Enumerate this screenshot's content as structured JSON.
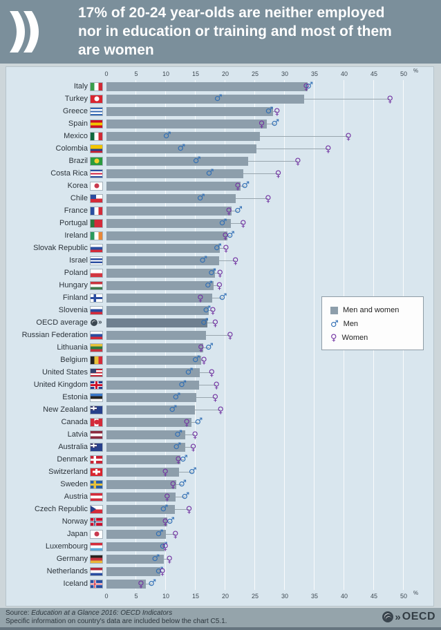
{
  "header": {
    "title_lines": [
      "17% of 20-24 year-olds are neither employed",
      "nor in education or training and most of them",
      "are women"
    ]
  },
  "axis": {
    "ticks": [
      0,
      5,
      10,
      15,
      20,
      25,
      30,
      35,
      40,
      45,
      50
    ],
    "unit": "%"
  },
  "legend": {
    "items": [
      {
        "icon": "bar-swatch-icon",
        "label": "Men and women"
      },
      {
        "icon": "male-icon",
        "label": "Men"
      },
      {
        "icon": "female-icon",
        "label": "Women"
      }
    ]
  },
  "chart_data": {
    "type": "bar",
    "orientation": "horizontal",
    "title": "17% of 20-24 year-olds are neither employed nor in education or training and most of them are women",
    "xlabel": "%",
    "xlim": [
      0,
      50
    ],
    "grid": "vertical, every 5",
    "legend_position": "middle-right",
    "series_names": [
      "Men and women",
      "Men",
      "Women"
    ],
    "marker_glyphs": {
      "men": "♂",
      "women": "♀"
    },
    "rows": [
      {
        "country": "Italy",
        "total": 33.8,
        "men": 34.1,
        "women": 33.6,
        "flag": {
          "d": "v",
          "c": [
            "#3a9e4b",
            "#ffffff",
            "#cf2b36"
          ]
        }
      },
      {
        "country": "Turkey",
        "total": 33.3,
        "men": 18.8,
        "women": 47.7,
        "flag": {
          "c": [
            "#d9252f"
          ],
          "o": [
            {
              "t": "dot",
              "c": "#ffffff"
            }
          ]
        }
      },
      {
        "country": "Greece",
        "total": 28.0,
        "men": 27.4,
        "women": 28.7,
        "flag": {
          "d": "h",
          "c": [
            "#3468b2",
            "#ffffff",
            "#3468b2",
            "#ffffff",
            "#3468b2"
          ]
        }
      },
      {
        "country": "Spain",
        "total": 27.0,
        "men": 28.4,
        "women": 26.1,
        "flag": {
          "d": "h",
          "c": [
            "#cc1126",
            "#f2c500",
            "#cc1126"
          ]
        }
      },
      {
        "country": "Mexico",
        "total": 25.8,
        "men": 10.2,
        "women": 40.7,
        "flag": {
          "d": "v",
          "c": [
            "#10693e",
            "#ffffff",
            "#cf2b36"
          ]
        }
      },
      {
        "country": "Colombia",
        "total": 25.2,
        "men": 12.6,
        "women": 37.3,
        "flag": {
          "d": "h",
          "c": [
            "#f2c500",
            "#f2c500",
            "#27408b",
            "#cf2030"
          ]
        }
      },
      {
        "country": "Brazil",
        "total": 23.8,
        "men": 15.2,
        "women": 32.2,
        "flag": {
          "c": [
            "#2b9a3e"
          ],
          "o": [
            {
              "t": "dot",
              "c": "#f2d02e"
            }
          ]
        }
      },
      {
        "country": "Costa Rica",
        "total": 23.0,
        "men": 17.4,
        "women": 28.9,
        "flag": {
          "d": "h",
          "c": [
            "#2a4da0",
            "#ffffff",
            "#d01f3c",
            "#ffffff",
            "#2a4da0"
          ]
        }
      },
      {
        "country": "Korea",
        "total": 22.6,
        "men": 23.4,
        "women": 22.1,
        "flag": {
          "c": [
            "#ffffff"
          ],
          "o": [
            {
              "t": "dot",
              "c": "#c93a4e"
            }
          ]
        }
      },
      {
        "country": "Chile",
        "total": 21.8,
        "men": 15.9,
        "women": 27.2,
        "flag": {
          "d": "h",
          "c": [
            "#ffffff",
            "#d32b3a"
          ],
          "o": [
            {
              "t": "canton",
              "c": "#2a4da0"
            }
          ]
        }
      },
      {
        "country": "France",
        "total": 21.1,
        "men": 22.2,
        "women": 20.6,
        "flag": {
          "d": "v",
          "c": [
            "#2a4da0",
            "#ffffff",
            "#d32b3a"
          ]
        }
      },
      {
        "country": "Portugal",
        "total": 20.9,
        "men": 19.6,
        "women": 23.0,
        "flag": {
          "d": "v",
          "c": [
            "#2b7a3d",
            "#d32b3a",
            "#d32b3a"
          ]
        }
      },
      {
        "country": "Ireland",
        "total": 20.3,
        "men": 20.9,
        "women": 20.0,
        "flag": {
          "d": "v",
          "c": [
            "#2b9a5d",
            "#ffffff",
            "#e8883a"
          ]
        }
      },
      {
        "country": "Slovak Republic",
        "total": 19.1,
        "men": 18.7,
        "women": 20.1,
        "flag": {
          "d": "h",
          "c": [
            "#ffffff",
            "#2a4da0",
            "#d32b3a"
          ]
        }
      },
      {
        "country": "Israel",
        "total": 18.9,
        "men": 16.3,
        "women": 21.7,
        "flag": {
          "d": "h",
          "c": [
            "#ffffff",
            "#2a4da0",
            "#ffffff",
            "#2a4da0",
            "#ffffff"
          ]
        }
      },
      {
        "country": "Poland",
        "total": 18.3,
        "men": 17.8,
        "women": 19.1,
        "flag": {
          "d": "h",
          "c": [
            "#ffffff",
            "#d33640"
          ]
        }
      },
      {
        "country": "Hungary",
        "total": 18.0,
        "men": 17.2,
        "women": 19.0,
        "flag": {
          "d": "h",
          "c": [
            "#c8333e",
            "#ffffff",
            "#3f7a4d"
          ]
        }
      },
      {
        "country": "Finland",
        "total": 17.8,
        "men": 19.6,
        "women": 15.8,
        "flag": {
          "c": [
            "#ffffff"
          ],
          "o": [
            {
              "t": "ncross",
              "c": "#2a4da0"
            }
          ]
        }
      },
      {
        "country": "Slovenia",
        "total": 17.2,
        "men": 16.9,
        "women": 17.9,
        "flag": {
          "d": "h",
          "c": [
            "#ffffff",
            "#2a4da0",
            "#d32b3a"
          ]
        }
      },
      {
        "country": "OECD average",
        "total": 17.0,
        "men": 16.5,
        "women": 18.3,
        "emphasis": true,
        "oecd_icon": true
      },
      {
        "country": "Russian Federation",
        "total": 16.7,
        "men": null,
        "women": 20.8,
        "flag": {
          "d": "h",
          "c": [
            "#ffffff",
            "#2a4da0",
            "#d32b3a"
          ]
        }
      },
      {
        "country": "Lithuania",
        "total": 16.3,
        "men": 17.3,
        "women": 15.9,
        "flag": {
          "d": "h",
          "c": [
            "#e8c23a",
            "#2b7a3d",
            "#c8333e"
          ]
        }
      },
      {
        "country": "Belgium",
        "total": 15.9,
        "men": 15.1,
        "women": 16.4,
        "flag": {
          "d": "v",
          "c": [
            "#26231f",
            "#e8c23a",
            "#d32b3a"
          ]
        }
      },
      {
        "country": "United States",
        "total": 15.7,
        "men": 13.9,
        "women": 17.7,
        "flag": {
          "d": "h",
          "c": [
            "#c02233",
            "#ffffff",
            "#c02233",
            "#ffffff",
            "#c02233"
          ],
          "o": [
            {
              "t": "canton",
              "c": "#33406e"
            }
          ]
        }
      },
      {
        "country": "United Kingdom",
        "total": 15.6,
        "men": 12.8,
        "women": 18.5,
        "flag": {
          "c": [
            "#27408b"
          ],
          "o": [
            {
              "t": "ucross"
            }
          ]
        }
      },
      {
        "country": "Estonia",
        "total": 15.1,
        "men": 11.8,
        "women": 18.3,
        "flag": {
          "d": "h",
          "c": [
            "#3a78c9",
            "#26231f",
            "#ffffff"
          ]
        }
      },
      {
        "country": "New Zealand",
        "total": 14.9,
        "men": 11.2,
        "women": 19.2,
        "flag": {
          "c": [
            "#27408b"
          ],
          "o": [
            {
              "t": "union"
            }
          ]
        }
      },
      {
        "country": "Canada",
        "total": 14.3,
        "men": 15.5,
        "women": 13.5,
        "flag": {
          "d": "v",
          "c": [
            "#d32b3a",
            "#ffffff",
            "#d32b3a"
          ],
          "o": [
            {
              "t": "dot",
              "c": "#d32b3a"
            }
          ]
        }
      },
      {
        "country": "Latvia",
        "total": 13.3,
        "men": 12.1,
        "women": 14.9,
        "flag": {
          "d": "h",
          "c": [
            "#8c2a3e",
            "#ffffff",
            "#8c2a3e"
          ]
        }
      },
      {
        "country": "Australia",
        "total": 13.2,
        "men": 11.9,
        "women": 14.6,
        "flag": {
          "c": [
            "#27408b"
          ],
          "o": [
            {
              "t": "union"
            }
          ]
        }
      },
      {
        "country": "Denmark",
        "total": 12.4,
        "men": 13.0,
        "women": 12.1,
        "flag": {
          "c": [
            "#ca2436"
          ],
          "o": [
            {
              "t": "ncross",
              "c": "#ffffff"
            }
          ]
        }
      },
      {
        "country": "Switzerland",
        "total": 12.2,
        "men": 14.5,
        "women": 9.9,
        "flag": {
          "c": [
            "#d9252f"
          ],
          "o": [
            {
              "t": "cross",
              "c": "#ffffff"
            }
          ]
        }
      },
      {
        "country": "Sweden",
        "total": 11.8,
        "men": 12.8,
        "women": 11.2,
        "flag": {
          "c": [
            "#2a5fa6"
          ],
          "o": [
            {
              "t": "ncross",
              "c": "#e8c23a"
            }
          ]
        }
      },
      {
        "country": "Austria",
        "total": 11.6,
        "men": 13.3,
        "women": 10.2,
        "flag": {
          "d": "h",
          "c": [
            "#d32b3a",
            "#ffffff",
            "#d32b3a"
          ]
        }
      },
      {
        "country": "Czech Republic",
        "total": 11.5,
        "men": 9.7,
        "women": 13.9,
        "flag": {
          "d": "h",
          "c": [
            "#ffffff",
            "#d32b3a"
          ],
          "o": [
            {
              "t": "tri",
              "c": "#27408b"
            }
          ]
        }
      },
      {
        "country": "Norway",
        "total": 10.2,
        "men": 10.8,
        "women": 9.9,
        "flag": {
          "c": [
            "#c8102e"
          ],
          "o": [
            {
              "t": "ncross",
              "c": "#ffffff"
            },
            {
              "t": "ncrossi",
              "c": "#1d3a6e"
            }
          ]
        }
      },
      {
        "country": "Japan",
        "total": 10.0,
        "men": 8.9,
        "women": 11.6,
        "flag": {
          "c": [
            "#ffffff"
          ],
          "o": [
            {
              "t": "dot",
              "c": "#c93a4e"
            }
          ]
        }
      },
      {
        "country": "Luxembourg",
        "total": 9.8,
        "men": 9.6,
        "women": 9.9,
        "flag": {
          "d": "h",
          "c": [
            "#d32b3a",
            "#ffffff",
            "#5aa8d8"
          ]
        }
      },
      {
        "country": "Germany",
        "total": 9.6,
        "men": 8.3,
        "women": 10.6,
        "flag": {
          "d": "h",
          "c": [
            "#26231f",
            "#c8333e",
            "#e8b63a"
          ]
        }
      },
      {
        "country": "Netherlands",
        "total": 9.1,
        "men": 8.9,
        "women": 9.4,
        "flag": {
          "d": "h",
          "c": [
            "#b5273a",
            "#ffffff",
            "#2a4da0"
          ]
        }
      },
      {
        "country": "Iceland",
        "total": 6.6,
        "men": 7.7,
        "women": 5.8,
        "flag": {
          "c": [
            "#2a4da0"
          ],
          "o": [
            {
              "t": "ncross",
              "c": "#ffffff"
            },
            {
              "t": "ncrossi",
              "c": "#d32b3a"
            }
          ]
        }
      }
    ]
  },
  "colors": {
    "header_bg": "#7b8f9b",
    "panel_bg": "#d9e6ee",
    "bar": "#8d9eab",
    "bar_oecd": "#6f8090",
    "men": "#2e6db4",
    "women": "#7030a0",
    "footer_bg": "#95a4ab"
  },
  "footer": {
    "source_prefix": "Source: ",
    "source_italic": "Education at a Glance 2016: OECD Indicators",
    "note": "Specific information on country's data are included below the chart C5.1.",
    "brand": "OECD"
  }
}
